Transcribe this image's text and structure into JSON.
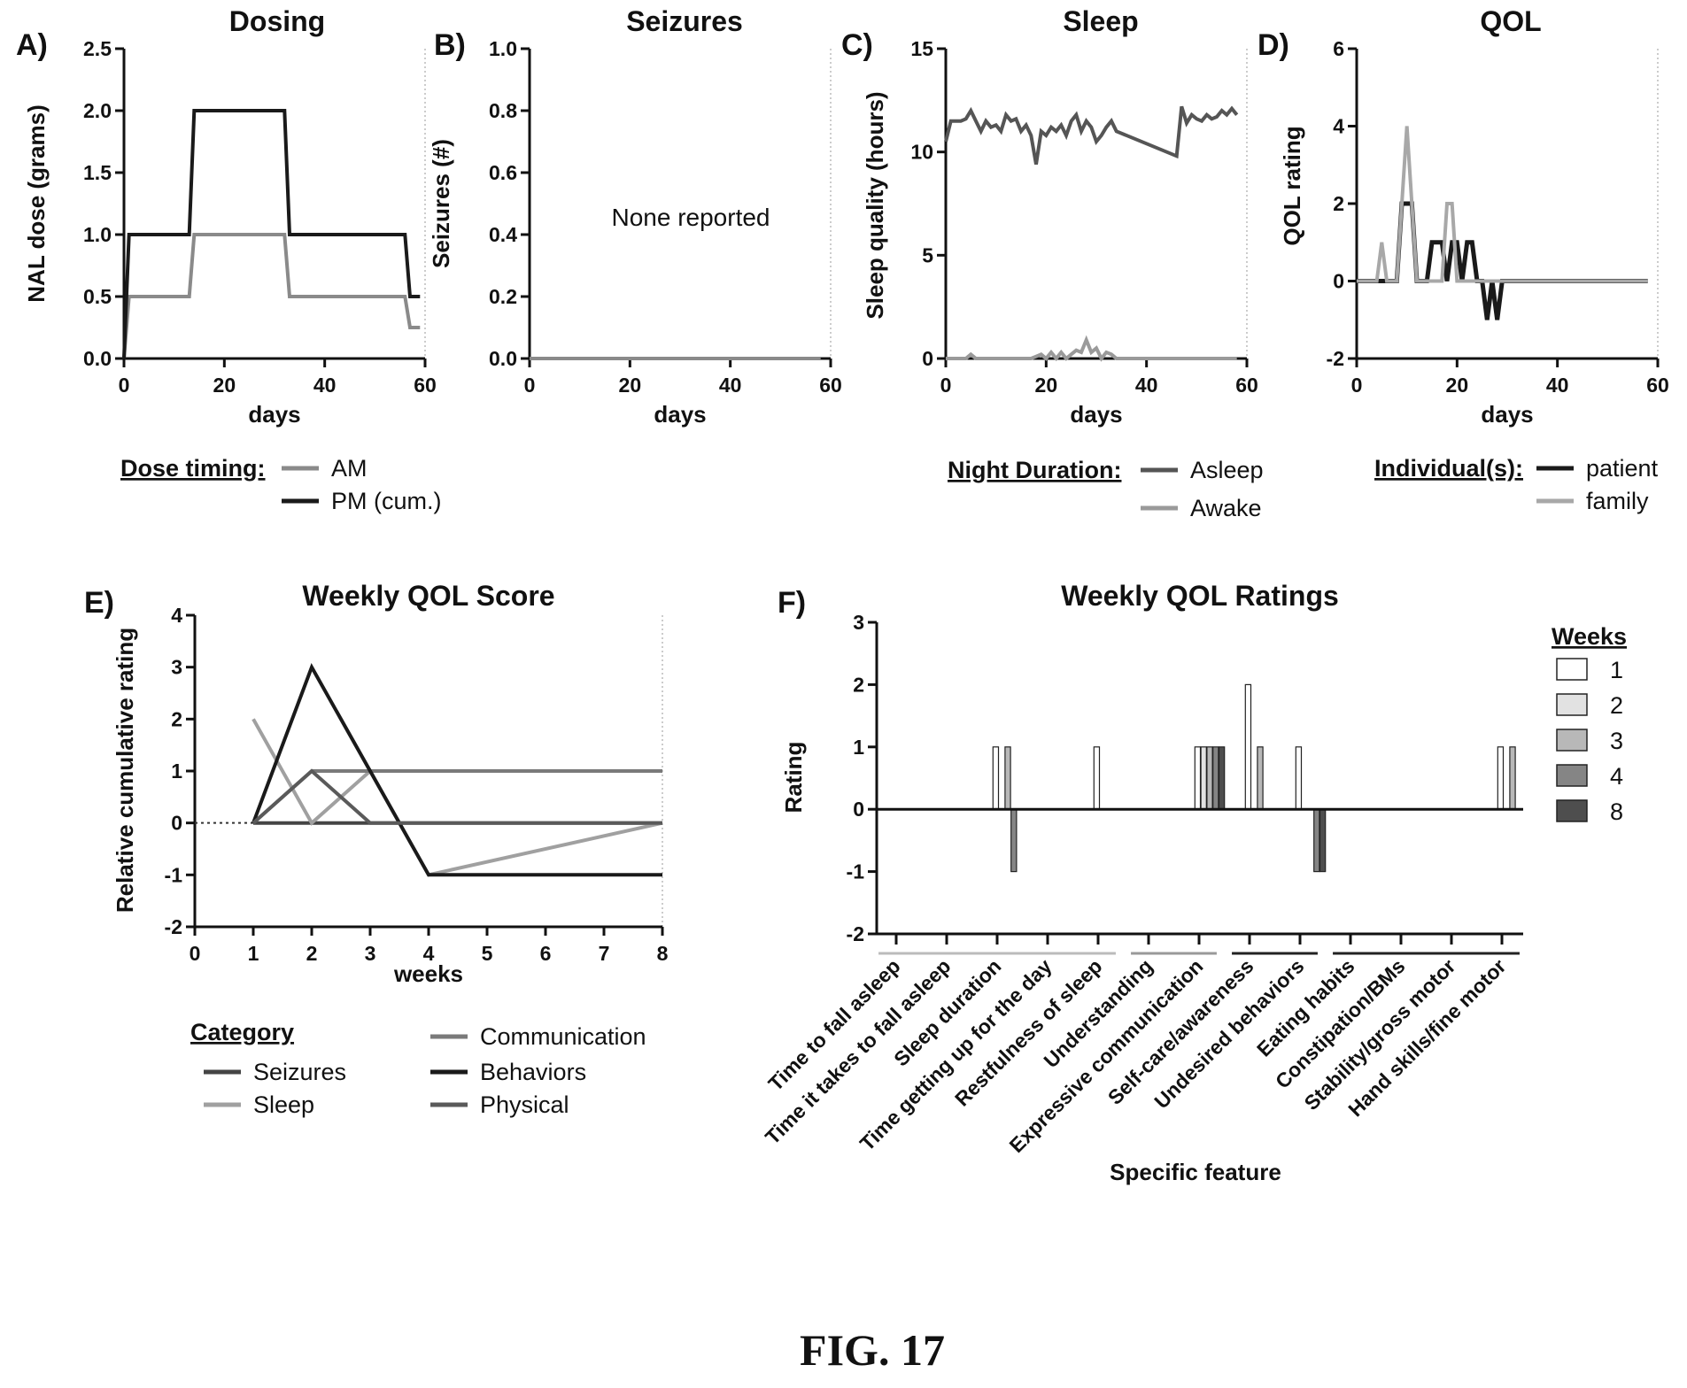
{
  "figure_caption": "FIG. 17",
  "chart_data": [
    {
      "id": "A",
      "panel_label": "A)",
      "type": "line",
      "title": "Dosing",
      "xlabel": "days",
      "ylabel": "NAL dose (grams)",
      "xlim": [
        0,
        60
      ],
      "ylim": [
        0,
        2.5
      ],
      "xticks": [
        "0",
        "20",
        "40",
        "60"
      ],
      "yticks": [
        "0.0",
        "0.5",
        "1.0",
        "1.5",
        "2.0",
        "2.5"
      ],
      "legend_title": "Dose timing:",
      "series": [
        {
          "name": "AM",
          "color": "#8a8a8a",
          "x": [
            0,
            1,
            13,
            14,
            32,
            33,
            56,
            57,
            59
          ],
          "y": [
            0,
            0.5,
            0.5,
            1.0,
            1.0,
            0.5,
            0.5,
            0.25,
            0.25
          ]
        },
        {
          "name": "PM (cum.)",
          "color": "#1a1a1a",
          "x": [
            0,
            1,
            13,
            14,
            32,
            33,
            56,
            57,
            59
          ],
          "y": [
            0,
            1.0,
            1.0,
            2.0,
            2.0,
            1.0,
            1.0,
            0.5,
            0.5
          ]
        }
      ]
    },
    {
      "id": "B",
      "panel_label": "B)",
      "type": "line",
      "title": "Seizures",
      "xlabel": "days",
      "ylabel": "Seizures (#)",
      "xlim": [
        0,
        60
      ],
      "ylim": [
        0,
        1.0
      ],
      "xticks": [
        "0",
        "20",
        "40",
        "60"
      ],
      "yticks": [
        "0.0",
        "0.2",
        "0.4",
        "0.6",
        "0.8",
        "1.0"
      ],
      "annotation": "None reported",
      "series": [
        {
          "name": "",
          "color": "#8a8a8a",
          "x": [
            0,
            58
          ],
          "y": [
            0,
            0
          ]
        }
      ]
    },
    {
      "id": "C",
      "panel_label": "C)",
      "type": "line",
      "title": "Sleep",
      "xlabel": "days",
      "ylabel": "Sleep quality (hours)",
      "xlim": [
        0,
        60
      ],
      "ylim": [
        0,
        15
      ],
      "xticks": [
        "0",
        "20",
        "40",
        "60"
      ],
      "yticks": [
        "0",
        "5",
        "10",
        "15"
      ],
      "legend_title": "Night Duration:",
      "series": [
        {
          "name": "Asleep",
          "color": "#555555",
          "x": [
            0,
            1,
            2,
            3,
            4,
            5,
            6,
            7,
            8,
            9,
            10,
            11,
            12,
            13,
            14,
            15,
            16,
            17,
            18,
            19,
            20,
            21,
            22,
            23,
            24,
            25,
            26,
            27,
            28,
            29,
            30,
            31,
            32,
            33,
            34,
            46,
            47,
            48,
            49,
            50,
            51,
            52,
            53,
            54,
            55,
            56,
            57,
            58
          ],
          "y": [
            10.5,
            11.5,
            11.5,
            11.5,
            11.6,
            12.0,
            11.5,
            11.0,
            11.5,
            11.2,
            11.3,
            11.0,
            11.8,
            11.5,
            11.6,
            11.0,
            11.3,
            10.8,
            9.4,
            11.0,
            10.8,
            11.2,
            11.0,
            11.3,
            10.8,
            11.5,
            11.8,
            11.0,
            11.5,
            11.2,
            10.5,
            10.8,
            11.2,
            11.5,
            11.0,
            9.8,
            12.2,
            11.4,
            11.8,
            11.6,
            11.5,
            11.8,
            11.6,
            11.7,
            12.0,
            11.8,
            12.1,
            11.8
          ]
        },
        {
          "name": "Awake",
          "color": "#9a9a9a",
          "x": [
            0,
            4,
            5,
            6,
            7,
            17,
            18,
            19,
            20,
            21,
            22,
            23,
            24,
            25,
            26,
            27,
            28,
            29,
            30,
            31,
            32,
            33,
            34,
            35,
            58
          ],
          "y": [
            0,
            0,
            0.2,
            0,
            0,
            0,
            0.1,
            0.2,
            0,
            0.3,
            0,
            0.3,
            0,
            0.2,
            0.4,
            0.3,
            0.9,
            0.3,
            0.5,
            0,
            0.3,
            0.2,
            0,
            0,
            0
          ]
        }
      ]
    },
    {
      "id": "D",
      "panel_label": "D)",
      "type": "line",
      "title": "QOL",
      "xlabel": "days",
      "ylabel": "QOL rating",
      "xlim": [
        0,
        60
      ],
      "ylim": [
        -2,
        6
      ],
      "xticks": [
        "0",
        "20",
        "40",
        "60"
      ],
      "yticks": [
        "-2",
        "0",
        "2",
        "4",
        "6"
      ],
      "legend_title": "Individual(s):",
      "series": [
        {
          "name": "patient",
          "color": "#1a1a1a",
          "x": [
            0,
            8,
            9,
            10,
            11,
            12,
            14,
            15,
            16,
            17,
            18,
            19,
            20,
            21,
            22,
            23,
            24,
            25,
            26,
            27,
            28,
            29,
            58
          ],
          "y": [
            0,
            0,
            2,
            2,
            2,
            0,
            0,
            1,
            1,
            1,
            0,
            1,
            1,
            0,
            1,
            1,
            0,
            0,
            -1,
            0,
            -1,
            0,
            0
          ]
        },
        {
          "name": "family",
          "color": "#a8a8a8",
          "x": [
            0,
            4,
            5,
            6,
            8,
            9,
            10,
            11,
            12,
            17,
            18,
            19,
            20,
            58
          ],
          "y": [
            0,
            0,
            1,
            0,
            0,
            2,
            4,
            2,
            0,
            0,
            2,
            2,
            0,
            0
          ]
        }
      ]
    },
    {
      "id": "E",
      "panel_label": "E)",
      "type": "line",
      "title": "Weekly QOL Score",
      "xlabel": "weeks",
      "ylabel": "Relative cumulative rating",
      "xlim": [
        0,
        8
      ],
      "ylim": [
        -2,
        4
      ],
      "xticks": [
        "0",
        "1",
        "2",
        "3",
        "4",
        "5",
        "6",
        "7",
        "8"
      ],
      "yticks": [
        "-2",
        "-1",
        "0",
        "1",
        "2",
        "3",
        "4"
      ],
      "legend_title": "Category",
      "baseline": {
        "x": [
          0,
          1
        ],
        "y": [
          0,
          0
        ]
      },
      "series": [
        {
          "name": "Seizures",
          "color": "#444444",
          "x": [
            1,
            2,
            3,
            4,
            8
          ],
          "y": [
            0,
            0,
            0,
            0,
            0
          ]
        },
        {
          "name": "Sleep",
          "color": "#a0a0a0",
          "x": [
            1,
            2,
            3,
            4,
            8
          ],
          "y": [
            2,
            0,
            1,
            -1,
            0
          ]
        },
        {
          "name": "Communication",
          "color": "#7a7a7a",
          "x": [
            1,
            2,
            3,
            4,
            8
          ],
          "y": [
            0,
            1,
            1,
            1,
            1
          ]
        },
        {
          "name": "Behaviors",
          "color": "#1a1a1a",
          "x": [
            1,
            2,
            3,
            4,
            8
          ],
          "y": [
            0,
            3,
            1,
            -1,
            -1
          ]
        },
        {
          "name": "Physical",
          "color": "#5a5a5a",
          "x": [
            1,
            2,
            3,
            4,
            8
          ],
          "y": [
            0,
            1,
            0,
            0,
            0
          ]
        }
      ]
    },
    {
      "id": "F",
      "panel_label": "F)",
      "type": "bar",
      "title": "Weekly QOL Ratings",
      "xlabel": "Specific feature",
      "ylabel": "Rating",
      "ylim": [
        -2,
        3
      ],
      "yticks": [
        "-2",
        "-1",
        "0",
        "1",
        "2",
        "3"
      ],
      "legend_title": "Weeks",
      "categories": [
        "Time to fall asleep",
        "Time it takes to fall asleep",
        "Sleep duration",
        "Time getting up for the day",
        "Restfulness of sleep",
        "Understanding",
        "Expressive communication",
        "Self-care/awareness",
        "Undesired behaviors",
        "Eating habits",
        "Constipation/BMs",
        "Stability/gross motor",
        "Hand skills/fine motor"
      ],
      "category_groups": [
        [
          0,
          4
        ],
        [
          5,
          6
        ],
        [
          7,
          8
        ],
        [
          9,
          12
        ]
      ],
      "series": [
        {
          "name": "1",
          "color": "#ffffff",
          "values": [
            0,
            0,
            1,
            0,
            1,
            0,
            1,
            2,
            1,
            0,
            0,
            0,
            1
          ]
        },
        {
          "name": "2",
          "color": "#e2e2e2",
          "values": [
            0,
            0,
            0,
            0,
            0,
            0,
            1,
            0,
            0,
            0,
            0,
            0,
            0
          ]
        },
        {
          "name": "3",
          "color": "#b8b8b8",
          "values": [
            0,
            0,
            1,
            0,
            0,
            0,
            1,
            1,
            0,
            0,
            0,
            0,
            1
          ]
        },
        {
          "name": "4",
          "color": "#858585",
          "values": [
            0,
            0,
            -1,
            0,
            0,
            0,
            1,
            0,
            -1,
            0,
            0,
            0,
            0
          ]
        },
        {
          "name": "8",
          "color": "#4e4e4e",
          "values": [
            0,
            0,
            0,
            0,
            0,
            0,
            1,
            0,
            -1,
            0,
            0,
            0,
            0
          ]
        }
      ]
    }
  ]
}
